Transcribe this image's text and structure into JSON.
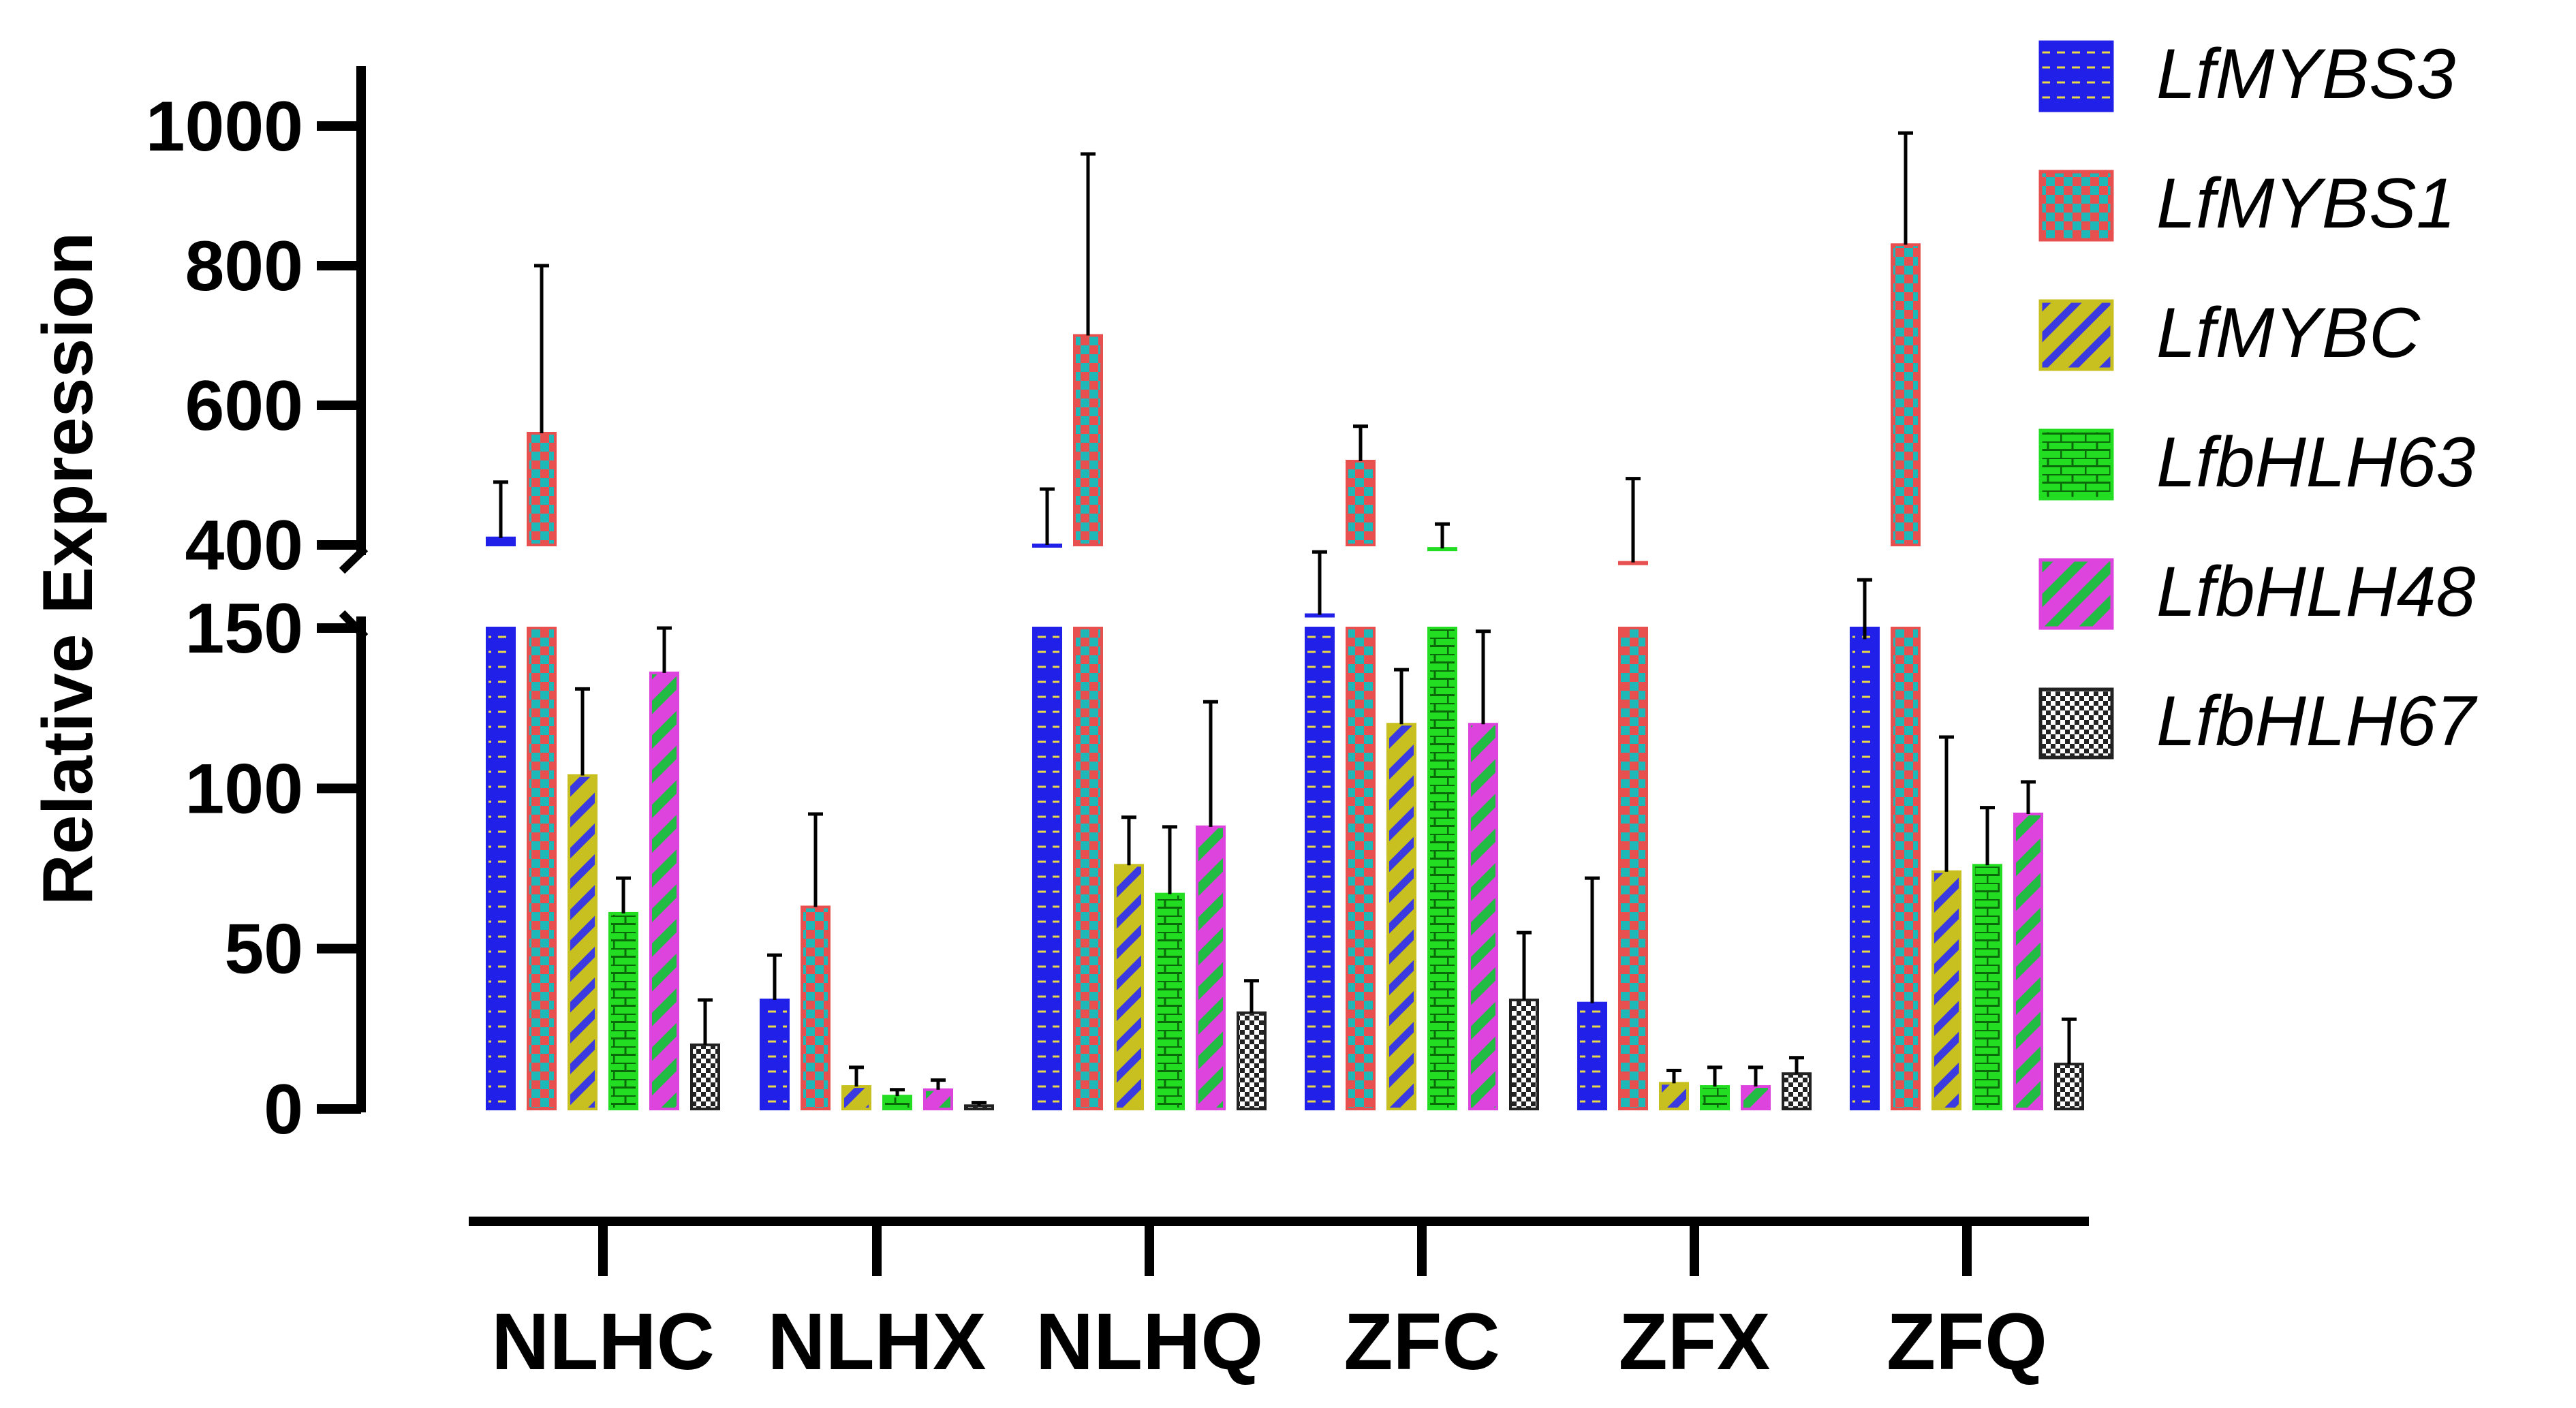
{
  "chart_data": {
    "type": "bar",
    "title": "",
    "xlabel": "",
    "ylabel": "Relative Expression",
    "categories": [
      "NLHC",
      "NLHX",
      "NLHQ",
      "ZFC",
      "ZFX",
      "ZFQ"
    ],
    "y_axis_segments": [
      {
        "range": [
          0,
          150
        ],
        "ticks": [
          0,
          50,
          100,
          150
        ]
      },
      {
        "range": [
          260,
          1050
        ],
        "ticks": [
          400,
          600,
          800,
          1000
        ]
      }
    ],
    "ylim": [
      0,
      1050
    ],
    "grid": false,
    "legend_position": "top-right",
    "series": [
      {
        "name": "LfMYBS3",
        "pattern": "horizontal-lines",
        "color": "#2020e8",
        "accent": "#e8d84a",
        "values": [
          410,
          34,
          400,
          300,
          33,
          265
        ],
        "errors": [
          80,
          14,
          80,
          90,
          39,
          85
        ]
      },
      {
        "name": "LfMYBS1",
        "pattern": "checker",
        "color": "#e85050",
        "accent": "#1fb8b8",
        "values": [
          560,
          63,
          700,
          520,
          375,
          830
        ],
        "errors": [
          240,
          29,
          260,
          50,
          120,
          160
        ]
      },
      {
        "name": "LfMYBC",
        "pattern": "diagonal-stripes",
        "color": "#c8c020",
        "accent": "#3a3ae0",
        "values": [
          104,
          7,
          76,
          120,
          8,
          74
        ],
        "errors": [
          27,
          6,
          15,
          17,
          4,
          42
        ]
      },
      {
        "name": "LfbHLH63",
        "pattern": "brick",
        "color": "#22dd22",
        "accent": "#0a6a0a",
        "values": [
          61,
          4,
          67,
          395,
          7,
          76
        ],
        "errors": [
          11,
          2,
          21,
          35,
          6,
          18
        ]
      },
      {
        "name": "LfbHLH48",
        "pattern": "diagonal-stripes",
        "color": "#dd44dd",
        "accent": "#22bb44",
        "values": [
          136,
          6,
          88,
          120,
          7,
          92
        ],
        "errors": [
          14,
          3,
          39,
          29,
          6,
          10
        ]
      },
      {
        "name": "LfbHLH67",
        "pattern": "fine-checker",
        "color": "#222222",
        "accent": "#ffffff",
        "values": [
          20,
          1,
          30,
          34,
          11,
          14
        ],
        "errors": [
          14,
          1,
          10,
          21,
          5,
          14
        ]
      }
    ]
  }
}
